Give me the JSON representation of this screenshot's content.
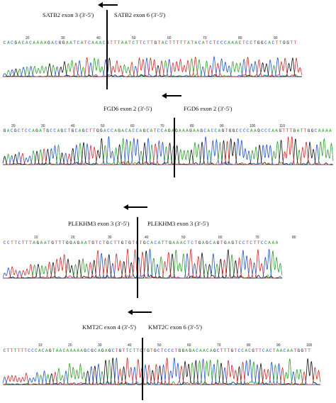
{
  "colors": {
    "A": "#2ca02c",
    "C": "#1f4fd6",
    "G": "#111111",
    "T": "#d62728"
  },
  "panels": [
    {
      "left_label": "SATB2 exon 3 (3'-5')",
      "right_label": "SATB2 exon 6 (3'-5')",
      "sequence": "CACGACACAAAAGACGGAATCATCAAACGTTTAATCTTCTTGTACTTTTTATACATCTCCCAAACTCCTGGCACTTGGTT",
      "positions": [
        "20",
        "30",
        "40",
        "50",
        "60",
        "70",
        "80",
        "90"
      ]
    },
    {
      "left_label": "FGD6 exon 2 (3'-5')",
      "right_label": "FGD6 exon 2 (3'-5')",
      "sequence": "GACGCTCCAGATGCCAGCTGCAGCTTGGACCAGACACCAGCATCCAGAGAAAGAAGCACCAGTGGCCCCAAGCCCAAGTTTGATTGGCAAAA",
      "positions": [
        "20",
        "30",
        "40",
        "50",
        "60",
        "70",
        "80",
        "90",
        "100",
        "110"
      ]
    },
    {
      "left_label": "PLEKHM3 exon 3 (3'-5')",
      "right_label": "PLEKHM3 exon 3 (3'-5')",
      "sequence": "CCTTCTTTAGAATGTTTGGAGAATGTCTGCTTGTGTCTGCACATTGAAACTCTGAGCAGTGAGTCCTCTTCCAAA",
      "positions": [
        "10",
        "20",
        "30",
        "40",
        "50",
        "60",
        "70",
        "80"
      ]
    },
    {
      "left_label": "KMT2C exon 4 (3'-5')",
      "right_label": "KMT2C exon 6 (3'-5')",
      "sequence": "CTTTTTTCCCACAGTAACAAAAAGCGCAGAGCTGTTCTTCTGTGCTCCCTGGAGACAACAGCTTTGTCCACGTTCACTAACAATGGTT",
      "positions": [
        "10",
        "20",
        "30",
        "40",
        "50",
        "60",
        "70",
        "80",
        "90",
        "100"
      ]
    }
  ]
}
